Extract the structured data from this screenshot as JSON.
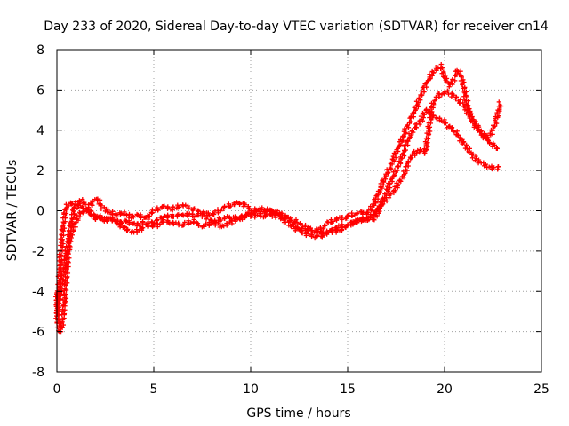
{
  "chart_data": {
    "type": "scatter",
    "title": "Day 233 of 2020, Sidereal Day-to-day VTEC variation (SDTVAR) for receiver cn14",
    "xlabel": "GPS time / hours",
    "ylabel": "SDTVAR / TECUs",
    "xlim": [
      0,
      25
    ],
    "ylim": [
      -8,
      8
    ],
    "xticks": [
      "0",
      "5",
      "10",
      "15",
      "20",
      "25"
    ],
    "yticks": [
      "-8",
      "-6",
      "-4",
      "-2",
      "0",
      "2",
      "4",
      "6",
      "8"
    ],
    "grid": true,
    "marker": "plus",
    "series": [
      {
        "name": "SDTVAR",
        "color": "#ff0000",
        "traces": [
          [
            [
              0,
              -4
            ],
            [
              0.05,
              -5.5
            ],
            [
              0.15,
              -6
            ],
            [
              0.25,
              -5.8
            ],
            [
              0.35,
              -5
            ],
            [
              0.45,
              -3.8
            ],
            [
              0.55,
              -2.5
            ],
            [
              0.65,
              -1.5
            ],
            [
              0.8,
              -1
            ],
            [
              1.0,
              -0.5
            ],
            [
              1.2,
              -0.1
            ],
            [
              1.4,
              0
            ],
            [
              1.6,
              0.1
            ],
            [
              1.8,
              -0.2
            ],
            [
              2.0,
              -0.4
            ],
            [
              2.2,
              -0.3
            ],
            [
              2.5,
              -0.5
            ],
            [
              2.8,
              -0.4
            ],
            [
              3.2,
              -0.6
            ],
            [
              3.6,
              -0.5
            ],
            [
              4.0,
              -0.7
            ],
            [
              4.5,
              -0.6
            ],
            [
              5.0,
              -0.8
            ],
            [
              5.5,
              -0.5
            ],
            [
              6.0,
              -0.6
            ],
            [
              6.5,
              -0.7
            ],
            [
              7.0,
              -0.5
            ],
            [
              7.5,
              -0.8
            ],
            [
              8.0,
              -0.6
            ],
            [
              8.5,
              -0.4
            ],
            [
              9.0,
              -0.3
            ],
            [
              9.5,
              -0.4
            ],
            [
              10.0,
              -0.2
            ],
            [
              10.5,
              -0.3
            ],
            [
              11.0,
              -0.2
            ],
            [
              11.5,
              -0.3
            ],
            [
              12.0,
              -0.7
            ],
            [
              12.5,
              -1.0
            ],
            [
              13.0,
              -1.2
            ],
            [
              13.5,
              -1.3
            ],
            [
              14.0,
              -1.1
            ],
            [
              14.5,
              -0.8
            ],
            [
              15.0,
              -0.7
            ],
            [
              15.5,
              -0.5
            ],
            [
              16.0,
              -0.4
            ],
            [
              16.3,
              -0.5
            ],
            [
              16.6,
              0
            ],
            [
              16.9,
              0.7
            ],
            [
              17.2,
              1.4
            ],
            [
              17.5,
              2.0
            ],
            [
              17.8,
              2.6
            ],
            [
              18.0,
              3.2
            ],
            [
              18.2,
              3.7
            ],
            [
              18.5,
              4.2
            ],
            [
              18.8,
              4.5
            ],
            [
              19.0,
              5.0
            ],
            [
              19.3,
              4.8
            ],
            [
              19.6,
              4.6
            ],
            [
              19.9,
              4.5
            ],
            [
              20.2,
              4.2
            ],
            [
              20.5,
              4.0
            ],
            [
              20.8,
              3.6
            ],
            [
              21.1,
              3.2
            ],
            [
              21.4,
              2.8
            ],
            [
              21.7,
              2.5
            ],
            [
              22.0,
              2.3
            ],
            [
              22.3,
              2.2
            ],
            [
              22.6,
              2.1
            ],
            [
              22.9,
              2.2
            ]
          ],
          [
            [
              0.0,
              -5.5
            ],
            [
              0.1,
              -3.8
            ],
            [
              0.2,
              -2.2
            ],
            [
              0.3,
              -1
            ],
            [
              0.4,
              -0.2
            ],
            [
              0.5,
              0.2
            ],
            [
              0.7,
              0.4
            ],
            [
              0.9,
              0.3
            ],
            [
              1.1,
              0.4
            ],
            [
              1.3,
              0.5
            ],
            [
              1.5,
              0.3
            ],
            [
              1.7,
              0.2
            ],
            [
              1.9,
              0.5
            ],
            [
              2.1,
              0.6
            ],
            [
              2.3,
              0.2
            ],
            [
              2.6,
              0
            ],
            [
              3.0,
              -0.2
            ],
            [
              3.4,
              -0.1
            ],
            [
              3.8,
              -0.3
            ],
            [
              4.2,
              -0.2
            ],
            [
              4.6,
              -0.4
            ],
            [
              5.0,
              0
            ],
            [
              5.5,
              0.2
            ],
            [
              6.0,
              0.1
            ],
            [
              6.5,
              0.3
            ],
            [
              7.0,
              0.1
            ],
            [
              7.5,
              -0.1
            ],
            [
              8.0,
              -0.2
            ],
            [
              8.5,
              0.1
            ],
            [
              9.0,
              0.3
            ],
            [
              9.5,
              0.4
            ],
            [
              10.0,
              0.1
            ],
            [
              10.5,
              -0.1
            ],
            [
              11.0,
              0
            ],
            [
              11.5,
              -0.2
            ],
            [
              12.0,
              -0.4
            ],
            [
              12.5,
              -0.6
            ],
            [
              13.0,
              -0.9
            ],
            [
              13.5,
              -1.0
            ],
            [
              14.0,
              -0.6
            ],
            [
              14.5,
              -0.4
            ],
            [
              15.0,
              -0.3
            ],
            [
              15.5,
              -0.1
            ],
            [
              16.0,
              -0.1
            ],
            [
              16.3,
              0.2
            ],
            [
              16.6,
              0.9
            ],
            [
              16.9,
              1.6
            ],
            [
              17.2,
              2.2
            ],
            [
              17.5,
              2.9
            ],
            [
              17.8,
              3.5
            ],
            [
              18.0,
              4.0
            ],
            [
              18.3,
              4.6
            ],
            [
              18.6,
              5.3
            ],
            [
              18.9,
              6.0
            ],
            [
              19.2,
              6.6
            ],
            [
              19.5,
              7.0
            ],
            [
              19.8,
              7.2
            ],
            [
              20.0,
              6.6
            ],
            [
              20.3,
              6.2
            ],
            [
              20.5,
              6.6
            ],
            [
              20.7,
              7.0
            ],
            [
              20.9,
              6.6
            ],
            [
              21.1,
              5.6
            ],
            [
              21.3,
              4.8
            ],
            [
              21.5,
              4.3
            ],
            [
              21.8,
              4.0
            ],
            [
              22.1,
              3.6
            ],
            [
              22.4,
              3.8
            ],
            [
              22.7,
              4.6
            ],
            [
              22.9,
              5.4
            ]
          ],
          [
            [
              0.1,
              -4.5
            ],
            [
              0.3,
              -3.2
            ],
            [
              0.5,
              -2
            ],
            [
              0.7,
              -0.8
            ],
            [
              0.9,
              0.1
            ],
            [
              1.1,
              0.3
            ],
            [
              1.3,
              0.2
            ],
            [
              2.0,
              -0.3
            ],
            [
              3.0,
              -0.5
            ],
            [
              3.5,
              -0.9
            ],
            [
              4.0,
              -1.1
            ],
            [
              4.5,
              -0.8
            ],
            [
              5.5,
              -0.3
            ],
            [
              6.5,
              -0.2
            ],
            [
              7.5,
              -0.2
            ],
            [
              8.5,
              -0.8
            ],
            [
              9.5,
              -0.3
            ],
            [
              10.5,
              0.1
            ],
            [
              11.5,
              -0.1
            ],
            [
              12.5,
              -0.9
            ],
            [
              13.5,
              -1.1
            ],
            [
              14.5,
              -1.0
            ],
            [
              15.5,
              -0.5
            ],
            [
              16.2,
              -0.3
            ],
            [
              16.8,
              0.4
            ],
            [
              17.4,
              1.0
            ],
            [
              17.9,
              1.8
            ],
            [
              18.2,
              2.6
            ],
            [
              18.6,
              3.0
            ],
            [
              19.0,
              2.9
            ],
            [
              19.4,
              5.4
            ],
            [
              19.8,
              5.8
            ],
            [
              20.2,
              5.9
            ],
            [
              20.6,
              5.6
            ],
            [
              21.0,
              5.2
            ],
            [
              21.4,
              4.6
            ],
            [
              21.8,
              4.0
            ],
            [
              22.2,
              3.5
            ],
            [
              22.6,
              3.2
            ],
            [
              22.8,
              3.0
            ]
          ]
        ]
      }
    ]
  }
}
